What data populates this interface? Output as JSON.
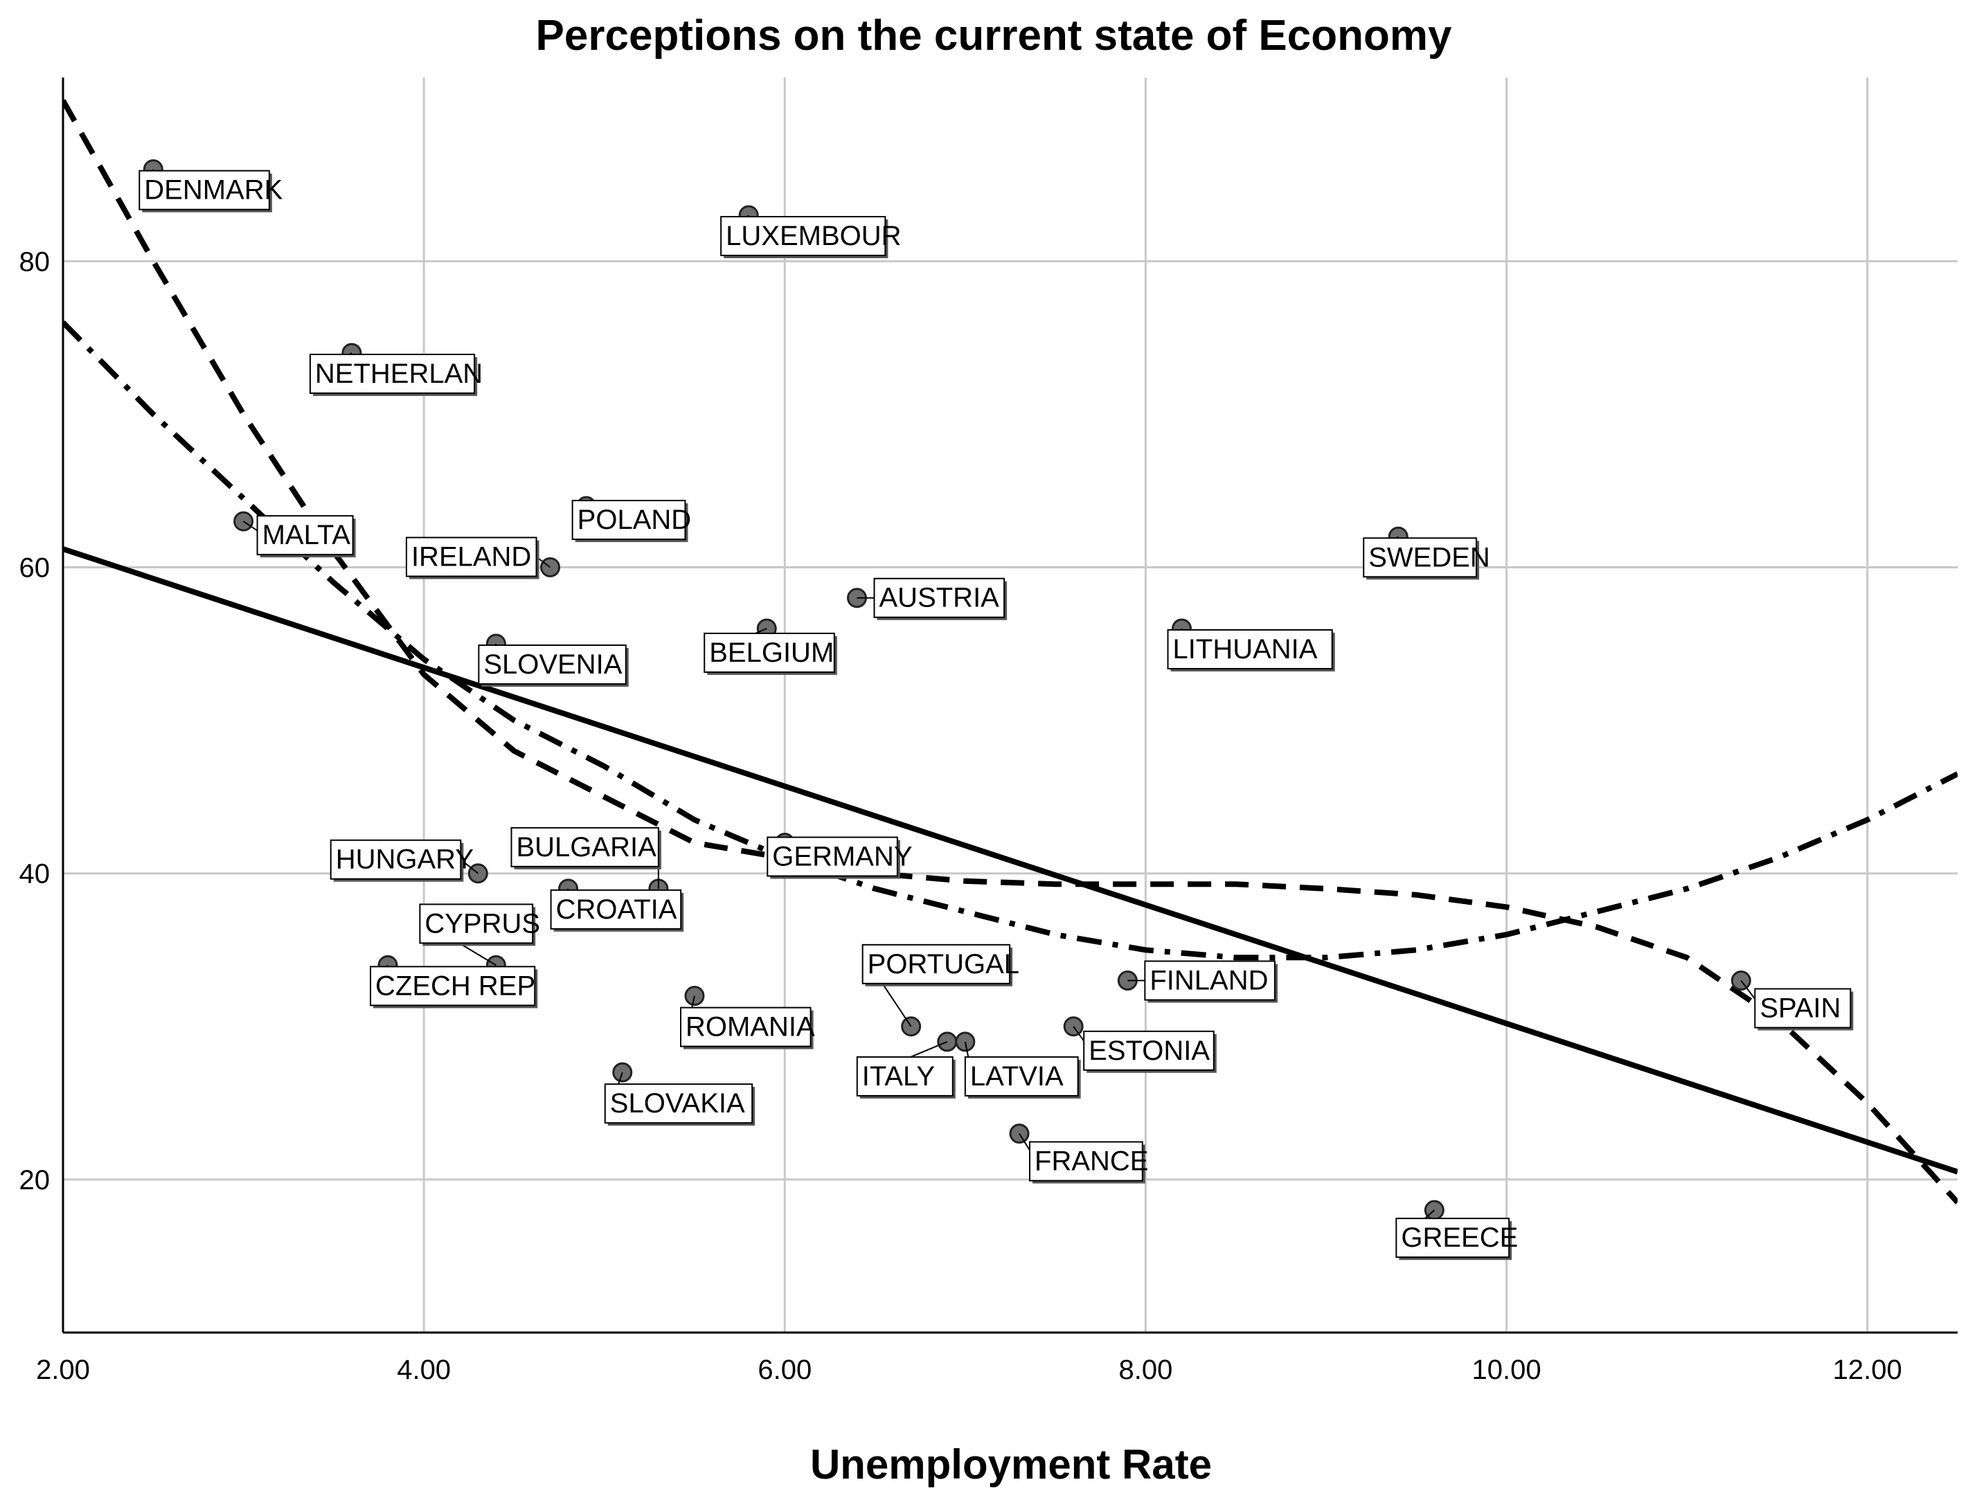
{
  "chart_data": {
    "type": "scatter",
    "title": "Perceptions on the current state of Economy",
    "xlabel": "Unemployment Rate",
    "ylabel": "",
    "xlim": [
      2.0,
      12.5
    ],
    "ylim": [
      10,
      92
    ],
    "x_ticks": [
      2.0,
      4.0,
      6.0,
      8.0,
      10.0,
      12.0
    ],
    "x_tick_labels": [
      "2.00",
      "4.00",
      "6.00",
      "8.00",
      "10.00",
      "12.00"
    ],
    "y_ticks": [
      20,
      40,
      60,
      80
    ],
    "y_tick_labels": [
      "20",
      "40",
      "60",
      "80"
    ],
    "grid": true,
    "points": [
      {
        "label": "DENMARK",
        "x": 2.5,
        "y": 86
      },
      {
        "label": "LUXEMBOUR",
        "x": 5.8,
        "y": 83
      },
      {
        "label": "NETHERLAN",
        "x": 3.6,
        "y": 74
      },
      {
        "label": "MALTA",
        "x": 3.0,
        "y": 63
      },
      {
        "label": "POLAND",
        "x": 4.9,
        "y": 64
      },
      {
        "label": "IRELAND",
        "x": 4.7,
        "y": 60
      },
      {
        "label": "SWEDEN",
        "x": 9.4,
        "y": 62
      },
      {
        "label": "AUSTRIA",
        "x": 6.4,
        "y": 58
      },
      {
        "label": "BELGIUM",
        "x": 5.9,
        "y": 56
      },
      {
        "label": "LITHUANIA",
        "x": 8.2,
        "y": 56
      },
      {
        "label": "SLOVENIA",
        "x": 4.4,
        "y": 55
      },
      {
        "label": "GERMANY",
        "x": 6.0,
        "y": 42
      },
      {
        "label": "HUNGARY",
        "x": 4.3,
        "y": 40
      },
      {
        "label": "BULGARIA",
        "x": 5.3,
        "y": 39
      },
      {
        "label": "CROATIA",
        "x": 4.8,
        "y": 39
      },
      {
        "label": "CYPRUS",
        "x": 4.4,
        "y": 34
      },
      {
        "label": "CZECH REP",
        "x": 3.8,
        "y": 34
      },
      {
        "label": "FINLAND",
        "x": 7.9,
        "y": 33
      },
      {
        "label": "SPAIN",
        "x": 11.3,
        "y": 33
      },
      {
        "label": "ROMANIA",
        "x": 5.5,
        "y": 32
      },
      {
        "label": "PORTUGAL",
        "x": 6.7,
        "y": 30
      },
      {
        "label": "ESTONIA",
        "x": 7.6,
        "y": 30
      },
      {
        "label": "ITALY",
        "x": 6.9,
        "y": 29
      },
      {
        "label": "LATVIA",
        "x": 7.0,
        "y": 29
      },
      {
        "label": "SLOVAKIA",
        "x": 5.1,
        "y": 27
      },
      {
        "label": "FRANCE",
        "x": 7.3,
        "y": 23
      },
      {
        "label": "GREECE",
        "x": 9.6,
        "y": 18
      }
    ],
    "fit_lines": [
      {
        "name": "linear",
        "style": "solid",
        "x": [
          2.0,
          12.5
        ],
        "y": [
          61.2,
          20.5
        ]
      },
      {
        "name": "quadratic",
        "style": "dash",
        "x": [
          2.0,
          2.5,
          3.0,
          3.5,
          4.0,
          4.5,
          5.0,
          5.5,
          6.0,
          6.5,
          7.0,
          7.5,
          8.0,
          8.5,
          9.0,
          9.5,
          10.0,
          10.5,
          11.0,
          11.5,
          12.0,
          12.5
        ],
        "y": [
          90.5,
          80.0,
          70.0,
          61.0,
          53.0,
          48.0,
          45.0,
          42.0,
          41.0,
          40.0,
          39.5,
          39.3,
          39.3,
          39.3,
          39.0,
          38.6,
          37.8,
          36.5,
          34.5,
          30.5,
          25.0,
          18.5
        ]
      },
      {
        "name": "cubic",
        "style": "dashdot",
        "x": [
          2.0,
          2.5,
          3.0,
          3.5,
          4.0,
          4.5,
          5.0,
          5.5,
          6.0,
          6.5,
          7.0,
          7.5,
          8.0,
          8.5,
          9.0,
          9.5,
          10.0,
          10.5,
          11.0,
          11.5,
          12.0,
          12.5
        ],
        "y": [
          76.0,
          70.0,
          64.5,
          59.0,
          54.0,
          50.0,
          47.0,
          43.5,
          41.0,
          39.0,
          37.5,
          36.0,
          35.0,
          34.5,
          34.5,
          35.0,
          36.0,
          37.5,
          39.0,
          41.0,
          43.5,
          46.5
        ]
      }
    ]
  }
}
